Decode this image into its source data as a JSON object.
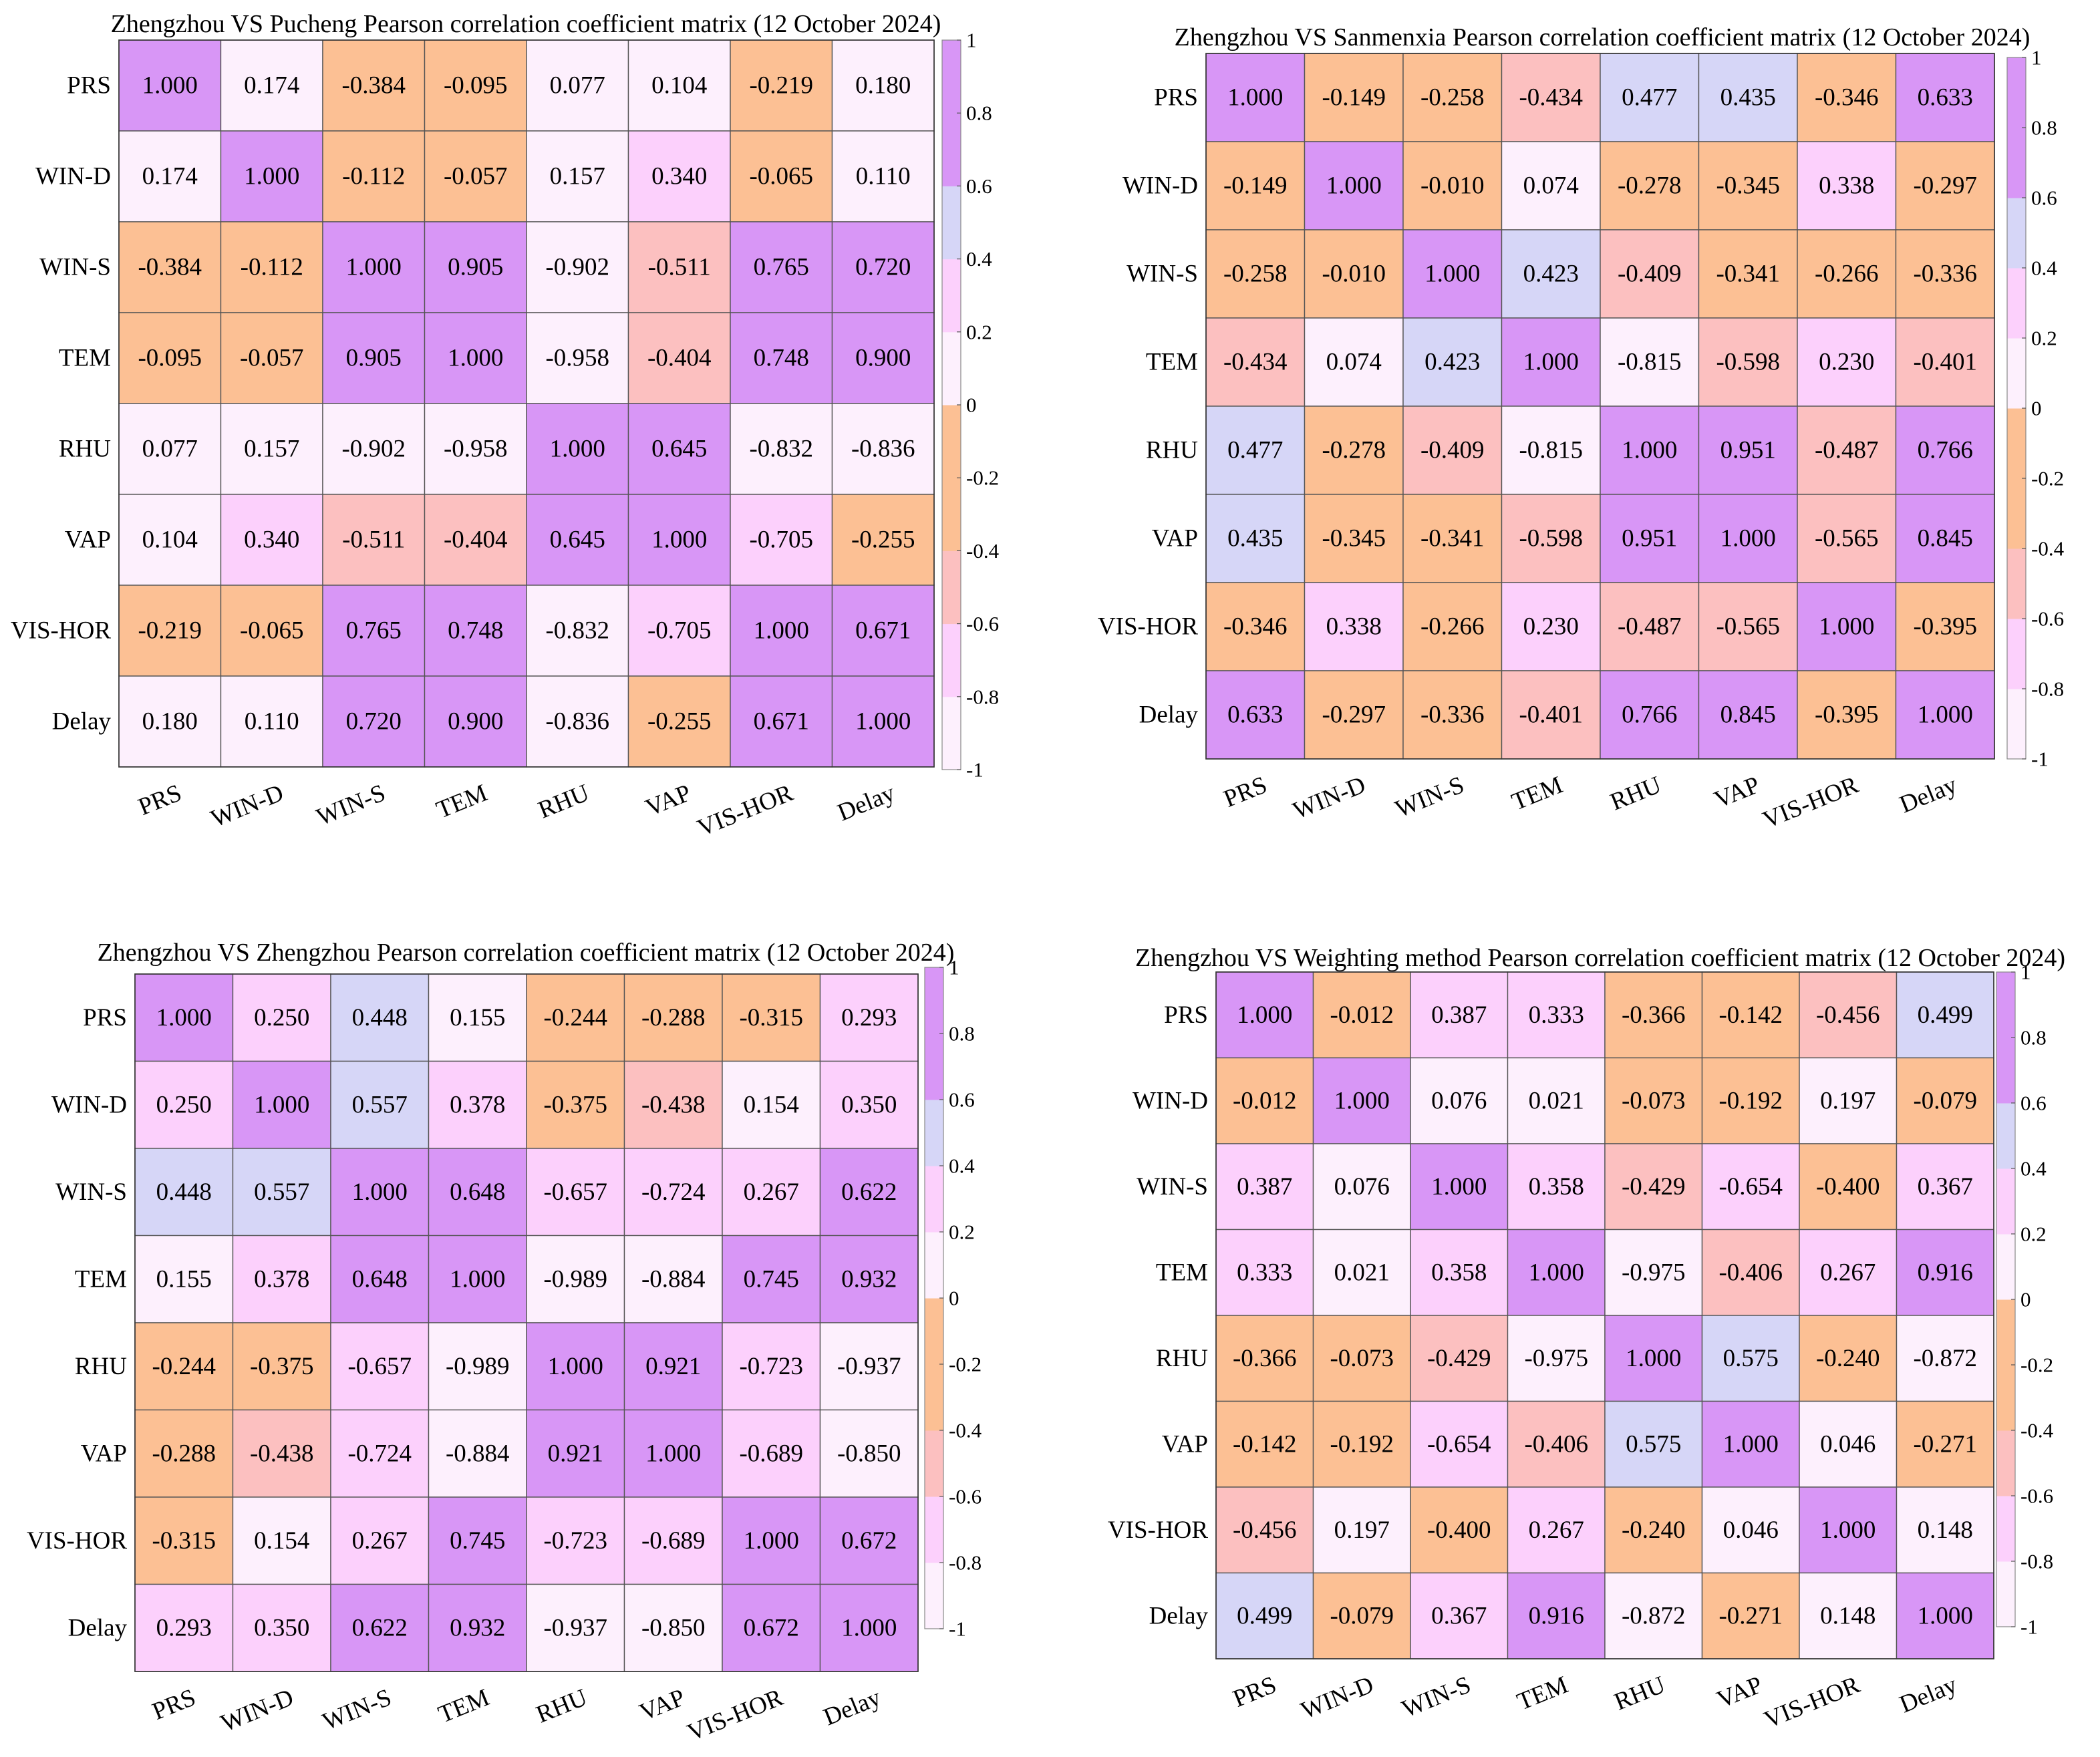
{
  "chart_data": [
    {
      "type": "heatmap",
      "title": "Zhengzhou VS Pucheng Pearson correlation coefficient matrix (12 October 2024)",
      "labels": [
        "PRS",
        "WIN-D",
        "WIN-S",
        "TEM",
        "RHU",
        "VAP",
        "VIS-HOR",
        "Delay"
      ],
      "value_labels": [
        [
          "1.000",
          "0.174",
          "-0.384",
          "-0.095",
          "0.077",
          "0.104",
          "-0.219",
          "0.180"
        ],
        [
          "0.174",
          "1.000",
          "-0.112",
          "-0.057",
          "0.157",
          "0.340",
          "-0.065",
          "0.110"
        ],
        [
          "-0.384",
          "-0.112",
          "1.000",
          "0.905",
          "-0.902",
          "-0.511",
          "0.765",
          "0.720"
        ],
        [
          "-0.095",
          "-0.057",
          "0.905",
          "1.000",
          "-0.958",
          "-0.404",
          "0.748",
          "0.900"
        ],
        [
          "0.077",
          "0.157",
          "-0.902",
          "-0.958",
          "1.000",
          "0.645",
          "-0.832",
          "-0.836"
        ],
        [
          "0.104",
          "0.340",
          "-0.511",
          "-0.404",
          "0.645",
          "1.000",
          "-0.705",
          "-0.255"
        ],
        [
          "-0.219",
          "-0.065",
          "0.765",
          "0.748",
          "-0.832",
          "-0.705",
          "1.000",
          "0.671"
        ],
        [
          "0.180",
          "0.110",
          "0.720",
          "0.900",
          "-0.836",
          "-0.255",
          "0.671",
          "1.000"
        ]
      ],
      "colorbar_ticks": [
        "1",
        "0.8",
        "0.6",
        "0.4",
        "0.2",
        "0",
        "-0.2",
        "-0.4",
        "-0.6",
        "-0.8",
        "-1"
      ]
    },
    {
      "type": "heatmap",
      "title": "Zhengzhou VS Sanmenxia Pearson correlation coefficient matrix (12 October 2024)",
      "labels": [
        "PRS",
        "WIN-D",
        "WIN-S",
        "TEM",
        "RHU",
        "VAP",
        "VIS-HOR",
        "Delay"
      ],
      "value_labels": [
        [
          "1.000",
          "-0.149",
          "-0.258",
          "-0.434",
          "0.477",
          "0.435",
          "-0.346",
          "0.633"
        ],
        [
          "-0.149",
          "1.000",
          "-0.010",
          "0.074",
          "-0.278",
          "-0.345",
          "0.338",
          "-0.297"
        ],
        [
          "-0.258",
          "-0.010",
          "1.000",
          "0.423",
          "-0.409",
          "-0.341",
          "-0.266",
          "-0.336"
        ],
        [
          "-0.434",
          "0.074",
          "0.423",
          "1.000",
          "-0.815",
          "-0.598",
          "0.230",
          "-0.401"
        ],
        [
          "0.477",
          "-0.278",
          "-0.409",
          "-0.815",
          "1.000",
          "0.951",
          "-0.487",
          "0.766"
        ],
        [
          "0.435",
          "-0.345",
          "-0.341",
          "-0.598",
          "0.951",
          "1.000",
          "-0.565",
          "0.845"
        ],
        [
          "-0.346",
          "0.338",
          "-0.266",
          "0.230",
          "-0.487",
          "-0.565",
          "1.000",
          "-0.395"
        ],
        [
          "0.633",
          "-0.297",
          "-0.336",
          "-0.401",
          "0.766",
          "0.845",
          "-0.395",
          "1.000"
        ]
      ],
      "colorbar_ticks": [
        "1",
        "0.8",
        "0.6",
        "0.4",
        "0.2",
        "0",
        "-0.2",
        "-0.4",
        "-0.6",
        "-0.8",
        "-1"
      ]
    },
    {
      "type": "heatmap",
      "title": "Zhengzhou VS Zhengzhou Pearson correlation coefficient matrix (12 October 2024)",
      "labels": [
        "PRS",
        "WIN-D",
        "WIN-S",
        "TEM",
        "RHU",
        "VAP",
        "VIS-HOR",
        "Delay"
      ],
      "value_labels": [
        [
          "1.000",
          "0.250",
          "0.448",
          "0.155",
          "-0.244",
          "-0.288",
          "-0.315",
          "0.293"
        ],
        [
          "0.250",
          "1.000",
          "0.557",
          "0.378",
          "-0.375",
          "-0.438",
          "0.154",
          "0.350"
        ],
        [
          "0.448",
          "0.557",
          "1.000",
          "0.648",
          "-0.657",
          "-0.724",
          "0.267",
          "0.622"
        ],
        [
          "0.155",
          "0.378",
          "0.648",
          "1.000",
          "-0.989",
          "-0.884",
          "0.745",
          "0.932"
        ],
        [
          "-0.244",
          "-0.375",
          "-0.657",
          "-0.989",
          "1.000",
          "0.921",
          "-0.723",
          "-0.937"
        ],
        [
          "-0.288",
          "-0.438",
          "-0.724",
          "-0.884",
          "0.921",
          "1.000",
          "-0.689",
          "-0.850"
        ],
        [
          "-0.315",
          "0.154",
          "0.267",
          "0.745",
          "-0.723",
          "-0.689",
          "1.000",
          "0.672"
        ],
        [
          "0.293",
          "0.350",
          "0.622",
          "0.932",
          "-0.937",
          "-0.850",
          "0.672",
          "1.000"
        ]
      ],
      "colorbar_ticks": [
        "1",
        "0.8",
        "0.6",
        "0.4",
        "0.2",
        "0",
        "-0.2",
        "-0.4",
        "-0.6",
        "-0.8",
        "-1"
      ]
    },
    {
      "type": "heatmap",
      "title": "Zhengzhou VS Weighting method Pearson correlation coefficient matrix (12 October 2024)",
      "labels": [
        "PRS",
        "WIN-D",
        "WIN-S",
        "TEM",
        "RHU",
        "VAP",
        "VIS-HOR",
        "Delay"
      ],
      "value_labels": [
        [
          "1.000",
          "-0.012",
          "0.387",
          "0.333",
          "-0.366",
          "-0.142",
          "-0.456",
          "0.499"
        ],
        [
          "-0.012",
          "1.000",
          "0.076",
          "0.021",
          "-0.073",
          "-0.192",
          "0.197",
          "-0.079"
        ],
        [
          "0.387",
          "0.076",
          "1.000",
          "0.358",
          "-0.429",
          "-0.654",
          "-0.400",
          "0.367"
        ],
        [
          "0.333",
          "0.021",
          "0.358",
          "1.000",
          "-0.975",
          "-0.406",
          "0.267",
          "0.916"
        ],
        [
          "-0.366",
          "-0.073",
          "-0.429",
          "-0.975",
          "1.000",
          "0.575",
          "-0.240",
          "-0.872"
        ],
        [
          "-0.142",
          "-0.192",
          "-0.654",
          "-0.406",
          "0.575",
          "1.000",
          "0.046",
          "-0.271"
        ],
        [
          "-0.456",
          "0.197",
          "-0.400",
          "0.267",
          "-0.240",
          "0.046",
          "1.000",
          "0.148"
        ],
        [
          "0.499",
          "-0.079",
          "0.367",
          "0.916",
          "-0.872",
          "-0.271",
          "0.148",
          "1.000"
        ]
      ],
      "colorbar_ticks": [
        "1",
        "0.8",
        "0.6",
        "0.4",
        "0.2",
        "0",
        "-0.2",
        "-0.4",
        "-0.6",
        "-0.8",
        "-1"
      ]
    }
  ],
  "colormap": [
    "#fdf0fd",
    "#fcd0fc",
    "#fcc0c0",
    "#fcc094",
    "#fcc094",
    "#fdf0fd",
    "#fcd0fc",
    "#d6d6f7",
    "#d896f6",
    "#d896f6"
  ],
  "colormap_range": [
    -1,
    1
  ]
}
